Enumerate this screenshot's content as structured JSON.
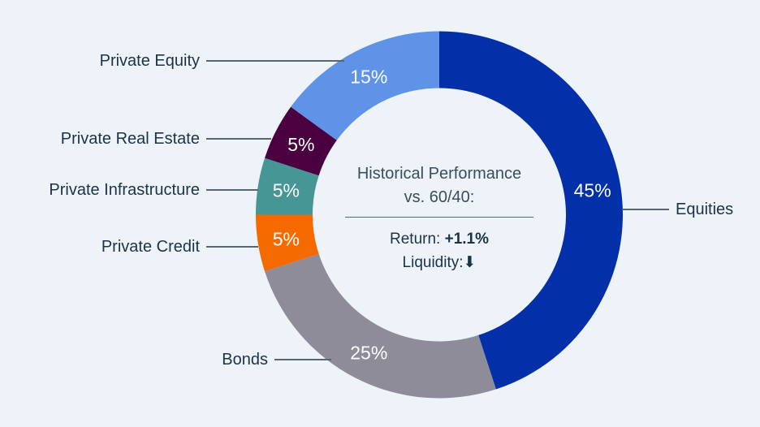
{
  "chart_data": {
    "type": "pie",
    "variant": "donut",
    "title": "",
    "center_text": {
      "title_line1": "Historical Performance",
      "title_line2": "vs. 60/40:",
      "return_label": "Return:",
      "return_value": "+1.1%",
      "liquidity_label": "Liquidity:",
      "liquidity_indicator": "down-arrow"
    },
    "slices": [
      {
        "name": "Equities",
        "value": 45,
        "label": "45%",
        "color": "#0330A8"
      },
      {
        "name": "Bonds",
        "value": 25,
        "label": "25%",
        "color": "#8E8C99"
      },
      {
        "name": "Private Credit",
        "value": 5,
        "label": "5%",
        "color": "#F56A00"
      },
      {
        "name": "Private Infrastructure",
        "value": 5,
        "label": "5%",
        "color": "#469696"
      },
      {
        "name": "Private Real Estate",
        "value": 5,
        "label": "5%",
        "color": "#4A0040"
      },
      {
        "name": "Private Equity",
        "value": 15,
        "label": "15%",
        "color": "#5E93E8"
      }
    ],
    "start_angle_deg": 0,
    "direction": "clockwise",
    "legend_position": "leader-line labels"
  },
  "labels": {
    "equities": "Equities",
    "bonds": "Bonds",
    "private_credit": "Private Credit",
    "private_infrastructure": "Private Infrastructure",
    "private_real_estate": "Private Real Estate",
    "private_equity": "Private Equity"
  },
  "center": {
    "title_line1": "Historical Performance",
    "title_line2": "vs. 60/40:",
    "return_label": "Return:",
    "return_value": "+1.1%",
    "liquidity_label": "Liquidity:",
    "liquidity_icon": "⬇"
  },
  "colors": {
    "background": "#EEF3FA",
    "text": "#1B3344",
    "leader": "#5B6475"
  }
}
